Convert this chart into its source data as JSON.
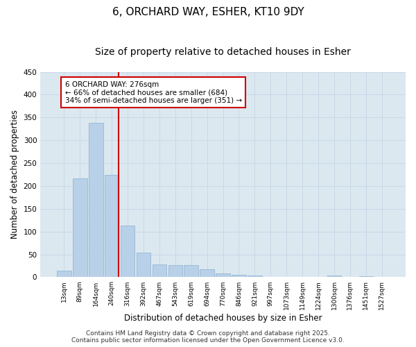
{
  "title1": "6, ORCHARD WAY, ESHER, KT10 9DY",
  "title2": "Size of property relative to detached houses in Esher",
  "xlabel": "Distribution of detached houses by size in Esher",
  "ylabel": "Number of detached properties",
  "categories": [
    "13sqm",
    "89sqm",
    "164sqm",
    "240sqm",
    "316sqm",
    "392sqm",
    "467sqm",
    "543sqm",
    "619sqm",
    "694sqm",
    "770sqm",
    "846sqm",
    "921sqm",
    "997sqm",
    "1073sqm",
    "1149sqm",
    "1224sqm",
    "1300sqm",
    "1376sqm",
    "1451sqm",
    "1527sqm"
  ],
  "values": [
    15,
    216,
    339,
    224,
    113,
    54,
    28,
    27,
    26,
    18,
    9,
    6,
    4,
    1,
    1,
    0,
    0,
    3,
    0,
    2,
    0
  ],
  "bar_color": "#b8d0e8",
  "bar_edge_color": "#8ab0cc",
  "vline_bin_index": 3,
  "vline_color": "#cc0000",
  "annotation_text": "6 ORCHARD WAY: 276sqm\n← 66% of detached houses are smaller (684)\n34% of semi-detached houses are larger (351) →",
  "annotation_box_color": "#cc0000",
  "ylim": [
    0,
    450
  ],
  "yticks": [
    0,
    50,
    100,
    150,
    200,
    250,
    300,
    350,
    400,
    450
  ],
  "grid_color": "#c8d8e8",
  "bg_color": "#dce8f0",
  "footer": "Contains HM Land Registry data © Crown copyright and database right 2025.\nContains public sector information licensed under the Open Government Licence v3.0.",
  "title1_fontsize": 11,
  "title2_fontsize": 10,
  "xlabel_fontsize": 8.5,
  "ylabel_fontsize": 8.5,
  "annotation_fontsize": 7.5,
  "footer_fontsize": 6.5
}
